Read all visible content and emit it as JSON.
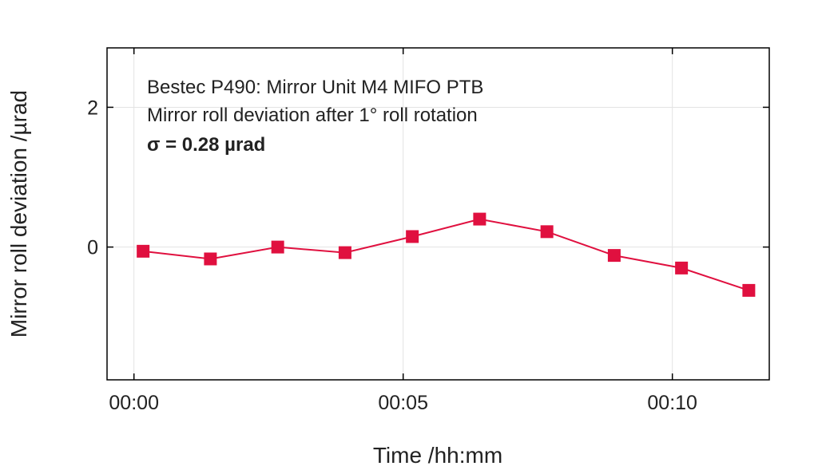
{
  "chart_data": {
    "type": "line",
    "xlabel": "Time /hh:mm",
    "ylabel": "Mirror roll deviation /µrad",
    "x_ticks": [
      {
        "minutes": 0,
        "label": "00:00"
      },
      {
        "minutes": 5,
        "label": "00:05"
      },
      {
        "minutes": 10,
        "label": "00:10"
      }
    ],
    "y_ticks": [
      {
        "value": 0,
        "label": "0"
      },
      {
        "value": 2,
        "label": "2"
      }
    ],
    "xlim": [
      -0.5,
      11.8
    ],
    "ylim": [
      -1.9,
      2.85
    ],
    "grid": true,
    "annotations": [
      "Bestec P490: Mirror Unit M4 MIFO PTB",
      "Mirror roll deviation after 1° roll rotation",
      "σ = 0.28 µrad"
    ],
    "series": [
      {
        "color": "#e0103f",
        "marker": "square",
        "x": [
          0.17,
          1.42,
          2.67,
          3.92,
          5.17,
          6.42,
          7.67,
          8.92,
          10.17,
          11.42
        ],
        "y": [
          -0.06,
          -0.17,
          0.0,
          -0.08,
          0.15,
          0.4,
          0.22,
          -0.12,
          -0.3,
          -0.62
        ]
      }
    ]
  }
}
